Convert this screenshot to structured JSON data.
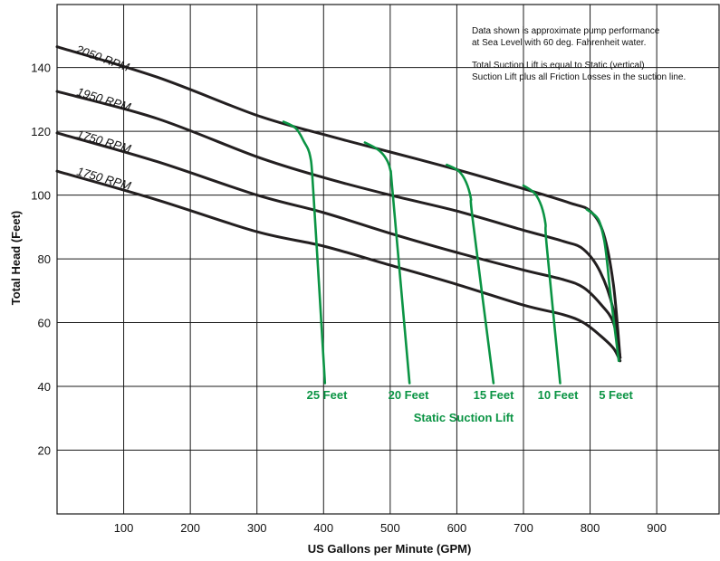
{
  "chart_data": {
    "type": "line",
    "xlabel": "US Gallons per Minute (GPM)",
    "ylabel": "Total Head (Feet)",
    "xlim": [
      0,
      980
    ],
    "ylim": [
      0,
      160
    ],
    "xticks": [
      100,
      200,
      300,
      400,
      500,
      600,
      700,
      800,
      900
    ],
    "yticks": [
      20,
      40,
      60,
      80,
      100,
      120,
      140
    ],
    "grid": true,
    "series": [
      {
        "name": "2050 RPM",
        "color": "#231f20",
        "x": [
          0,
          150,
          300,
          400,
          500,
          600,
          700,
          770,
          800,
          820,
          835,
          845
        ],
        "y": [
          146.5,
          137,
          125,
          119,
          113.5,
          108,
          102,
          97.5,
          95,
          88,
          72,
          49
        ]
      },
      {
        "name": "1950 RPM",
        "color": "#231f20",
        "x": [
          0,
          150,
          300,
          400,
          500,
          600,
          700,
          760,
          790,
          815,
          835,
          845
        ],
        "y": [
          132.5,
          124,
          112,
          105.5,
          100,
          95,
          89,
          85.5,
          83,
          76,
          64,
          49
        ]
      },
      {
        "name": "1750 RPM",
        "color": "#231f20",
        "x": [
          0,
          150,
          300,
          400,
          500,
          600,
          700,
          760,
          790,
          815,
          835,
          845
        ],
        "y": [
          119.5,
          110.5,
          100,
          94.5,
          88,
          82,
          76.5,
          73.5,
          71,
          66,
          60,
          49
        ]
      },
      {
        "name": "1750 RPM",
        "color": "#231f20",
        "x": [
          0,
          150,
          300,
          400,
          500,
          600,
          700,
          760,
          790,
          815,
          835,
          845
        ],
        "y": [
          107.5,
          98.5,
          88.5,
          84,
          78,
          72,
          65.5,
          62.5,
          60,
          56,
          52,
          48
        ]
      }
    ],
    "suction_lift_curves": [
      {
        "label": "25 Feet",
        "color": "#0b9444",
        "x": [
          340,
          358,
          370,
          380,
          385,
          402
        ],
        "y": [
          123,
          121,
          117,
          112,
          100,
          41
        ]
      },
      {
        "label": "20 Feet",
        "color": "#0b9444",
        "x": [
          462,
          480,
          492,
          500,
          504,
          529
        ],
        "y": [
          116.5,
          114.5,
          112,
          108,
          100,
          41
        ]
      },
      {
        "label": "15 Feet",
        "color": "#0b9444",
        "x": [
          585,
          603,
          614,
          621,
          624,
          655
        ],
        "y": [
          109.5,
          107.5,
          104,
          99,
          92,
          41
        ]
      },
      {
        "label": "10 Feet",
        "color": "#0b9444",
        "x": [
          700,
          717,
          727,
          733,
          735,
          755
        ],
        "y": [
          103,
          100.5,
          96.5,
          91,
          84,
          41
        ]
      },
      {
        "label": "5 Feet",
        "color": "#0b9444",
        "x": [
          795,
          812,
          821,
          826,
          830,
          843
        ],
        "y": [
          95.5,
          92.5,
          86,
          78,
          70,
          48
        ]
      }
    ],
    "annotations": [
      "Data shown is approximate pump performance",
      "at Sea Level with 60 deg. Fahrenheit water.",
      "Total Suction Lift is equal to Static (vertical)",
      "Suction Lift plus all Friction Losses in the suction line."
    ],
    "group_label": "Static Suction Lift"
  }
}
